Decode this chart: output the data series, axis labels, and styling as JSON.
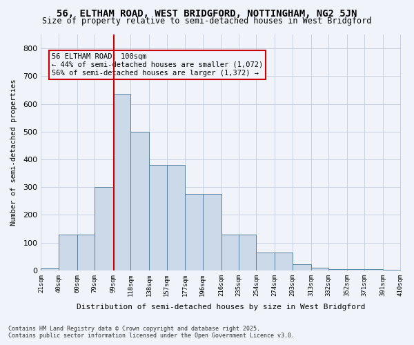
{
  "title": "56, ELTHAM ROAD, WEST BRIDGFORD, NOTTINGHAM, NG2 5JN",
  "subtitle": "Size of property relative to semi-detached houses in West Bridgford",
  "xlabel": "Distribution of semi-detached houses by size in West Bridgford",
  "ylabel": "Number of semi-detached properties",
  "footer_line1": "Contains HM Land Registry data © Crown copyright and database right 2025.",
  "footer_line2": "Contains public sector information licensed under the Open Government Licence v3.0.",
  "annotation_title": "56 ELTHAM ROAD: 100sqm",
  "annotation_line1": "← 44% of semi-detached houses are smaller (1,072)",
  "annotation_line2": "56% of semi-detached houses are larger (1,372) →",
  "property_size": 100,
  "bar_edges": [
    21,
    40,
    60,
    79,
    99,
    118,
    138,
    157,
    177,
    196,
    216,
    235,
    254,
    274,
    293,
    313,
    332,
    352,
    371,
    391,
    410
  ],
  "bar_heights": [
    7,
    128,
    128,
    300,
    635,
    500,
    380,
    380,
    275,
    275,
    130,
    130,
    65,
    65,
    22,
    10,
    5,
    5,
    5,
    2
  ],
  "bar_color": "#ccd9e8",
  "bar_edge_color": "#5580a0",
  "vline_color": "#cc0000",
  "annotation_box_color": "#cc0000",
  "background_color": "#f0f4fa",
  "grid_color": "#c8d0e0",
  "ylim": [
    0,
    850
  ],
  "yticks": [
    0,
    100,
    200,
    300,
    400,
    500,
    600,
    700,
    800
  ]
}
